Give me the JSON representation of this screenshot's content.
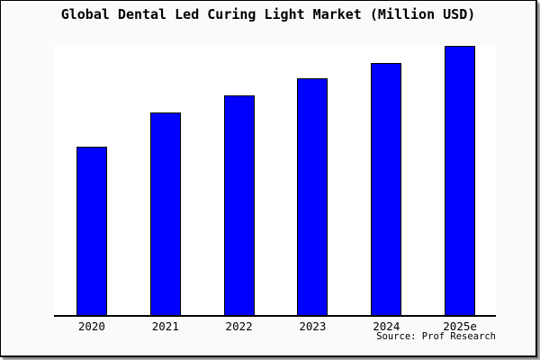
{
  "chart_data": {
    "type": "bar",
    "title": "Global Dental Led Curing Light Market (Million USD)",
    "categories": [
      "2020",
      "2021",
      "2022",
      "2023",
      "2024",
      "2025e"
    ],
    "values_relative": [
      62.4,
      75.1,
      81.5,
      87.8,
      93.5,
      100
    ],
    "value_axis_note": "y-axis has no tick labels; values are bar heights estimated relative to 2025e = 100",
    "xlabel": "",
    "ylabel": "",
    "legend": "none",
    "grid": false,
    "bar_color": "#0000ff",
    "bar_outline_color": "#000000",
    "page_background": "#fafafa",
    "plot_background": "#ffffff",
    "source": "Source: Prof Research"
  }
}
